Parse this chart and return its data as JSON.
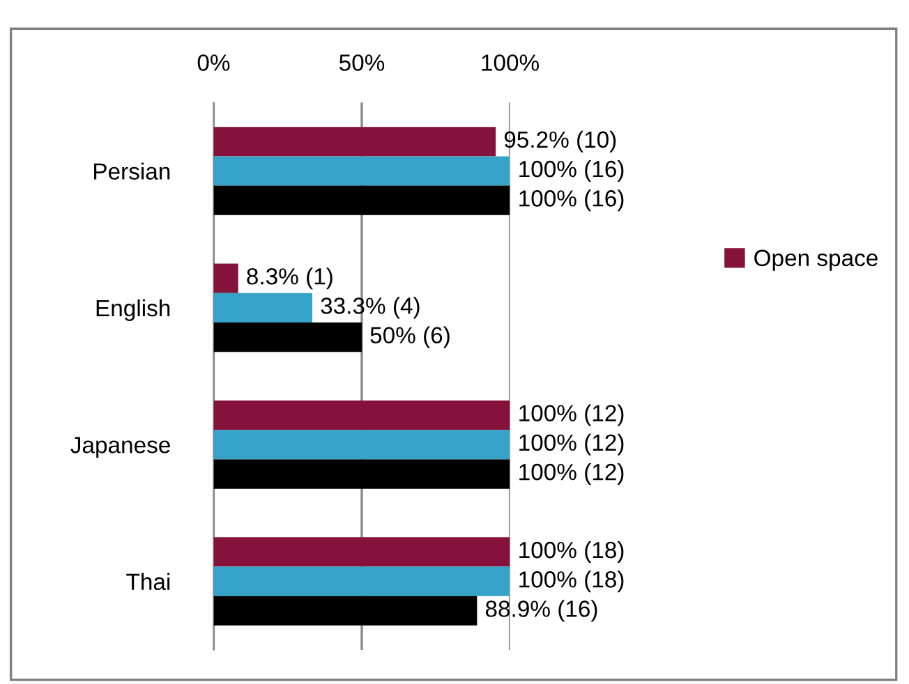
{
  "chart_data": {
    "type": "bar",
    "orientation": "horizontal",
    "categories": [
      "Persian",
      "English",
      "Japanese",
      "Thai"
    ],
    "series": [
      {
        "name": "Open space",
        "color": "#84123a",
        "values": [
          95.2,
          8.3,
          100,
          100
        ],
        "value_labels": [
          "95.2% (10)",
          "8.3% (1)",
          "100% (12)",
          "100% (18)"
        ]
      },
      {
        "color": "#36a2c8",
        "values": [
          100,
          33.3,
          100,
          100
        ],
        "value_labels": [
          "100% (16)",
          "33.3% (4)",
          "100% (12)",
          "100% (18)"
        ]
      },
      {
        "color": "#000000",
        "values": [
          100,
          50,
          100,
          88.9
        ],
        "value_labels": [
          "100% (16)",
          "50% (6)",
          "100% (12)",
          "88.9% (16)"
        ]
      }
    ],
    "xlim": [
      0,
      100
    ],
    "xticks": [
      {
        "value": 0,
        "label": "0%"
      },
      {
        "value": 50,
        "label": "50%"
      },
      {
        "value": 100,
        "label": "100%"
      }
    ],
    "grid": "x",
    "legend": "right"
  }
}
